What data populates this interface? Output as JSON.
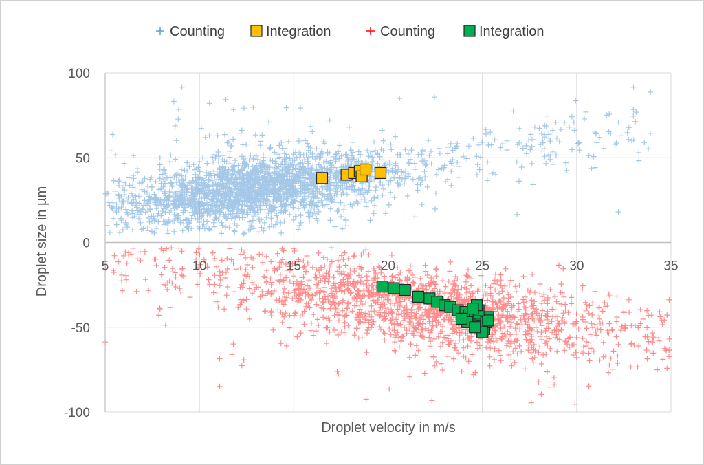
{
  "chart_data": {
    "type": "scatter",
    "xlabel": "Droplet velocity in m/s",
    "ylabel": "Droplet size in µm",
    "xlim": [
      5,
      35
    ],
    "ylim": [
      -100,
      100
    ],
    "x_ticks": [
      "5",
      "10",
      "15",
      "20",
      "25",
      "30",
      "35"
    ],
    "y_ticks": [
      "100",
      "50",
      "0",
      "-50",
      "-100"
    ],
    "grid": true,
    "legend_position": "top",
    "series": [
      {
        "name": "Counting",
        "marker": "plus",
        "color": "#5b9bd5",
        "cloud": {
          "approx_points": 2600,
          "note_center_trend": [
            [
              5,
              18
            ],
            [
              10,
              27
            ],
            [
              15,
              35
            ],
            [
              20,
              42
            ],
            [
              25,
              52
            ]
          ],
          "x_range": [
            5,
            34
          ],
          "y_range": [
            5,
            100
          ]
        }
      },
      {
        "name": "Integration",
        "marker": "square",
        "color": "#ffc000",
        "points": [
          {
            "x": 16.5,
            "y": 38
          },
          {
            "x": 17.8,
            "y": 40
          },
          {
            "x": 18.2,
            "y": 41
          },
          {
            "x": 18.5,
            "y": 42
          },
          {
            "x": 18.6,
            "y": 39
          },
          {
            "x": 18.8,
            "y": 43
          },
          {
            "x": 19.6,
            "y": 41
          }
        ]
      },
      {
        "name": "Counting",
        "marker": "plus",
        "color": "#ff0000",
        "cloud": {
          "approx_points": 6000,
          "note_center_trend": [
            [
              5,
              -10
            ],
            [
              10,
              -18
            ],
            [
              15,
              -27
            ],
            [
              20,
              -35
            ],
            [
              25,
              -43
            ],
            [
              30,
              -50
            ],
            [
              35,
              -57
            ]
          ],
          "x_range": [
            5,
            35
          ],
          "y_range": [
            -100,
            -3
          ]
        }
      },
      {
        "name": "Integration",
        "marker": "square",
        "color": "#00b050",
        "points": [
          {
            "x": 19.7,
            "y": -26
          },
          {
            "x": 20.3,
            "y": -27
          },
          {
            "x": 20.9,
            "y": -28
          },
          {
            "x": 21.6,
            "y": -32
          },
          {
            "x": 22.2,
            "y": -33
          },
          {
            "x": 22.6,
            "y": -35
          },
          {
            "x": 23.0,
            "y": -37
          },
          {
            "x": 23.3,
            "y": -38
          },
          {
            "x": 23.7,
            "y": -40
          },
          {
            "x": 24.1,
            "y": -41
          },
          {
            "x": 24.3,
            "y": -43
          },
          {
            "x": 24.6,
            "y": -44
          },
          {
            "x": 24.8,
            "y": -46
          },
          {
            "x": 24.9,
            "y": -48
          },
          {
            "x": 25.0,
            "y": -49
          },
          {
            "x": 25.1,
            "y": -51
          },
          {
            "x": 25.2,
            "y": -47
          },
          {
            "x": 25.3,
            "y": -44
          },
          {
            "x": 25.3,
            "y": -46
          },
          {
            "x": 24.8,
            "y": -40
          },
          {
            "x": 24.7,
            "y": -37
          },
          {
            "x": 24.5,
            "y": -39
          },
          {
            "x": 25.0,
            "y": -53
          },
          {
            "x": 24.2,
            "y": -47
          },
          {
            "x": 23.9,
            "y": -45
          },
          {
            "x": 24.6,
            "y": -50
          }
        ]
      }
    ]
  }
}
